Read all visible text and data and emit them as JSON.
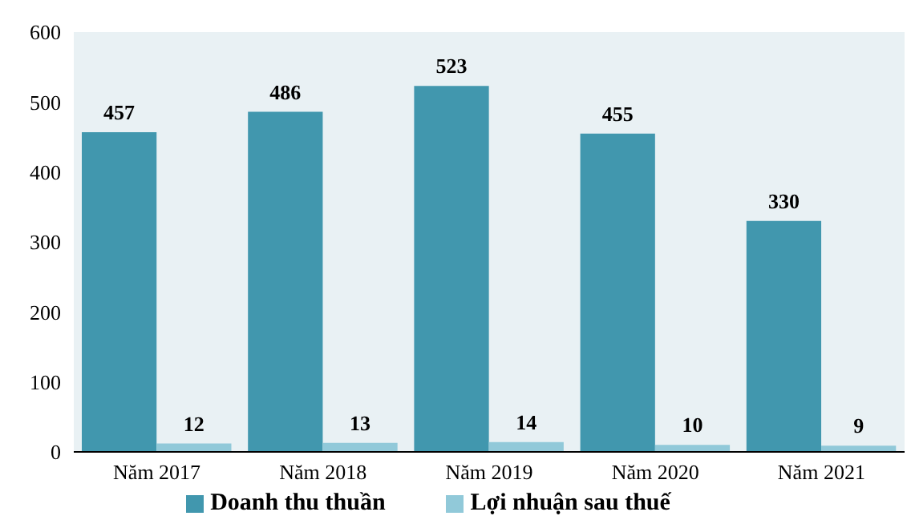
{
  "chart_data": {
    "type": "bar",
    "categories": [
      "Năm 2017",
      "Năm 2018",
      "Năm 2019",
      "Năm 2020",
      "Năm 2021"
    ],
    "series": [
      {
        "name": "Doanh thu thuần",
        "color": "#4197ae",
        "values": [
          457,
          486,
          523,
          455,
          330
        ]
      },
      {
        "name": "Lợi nhuận sau thuế",
        "color": "#91c9d9",
        "values": [
          12,
          13,
          14,
          10,
          9
        ]
      }
    ],
    "ylim": [
      0,
      600
    ],
    "yticks": [
      0,
      100,
      200,
      300,
      400,
      500,
      600
    ],
    "grid": false,
    "legend": "bottom",
    "data_labels": true
  }
}
